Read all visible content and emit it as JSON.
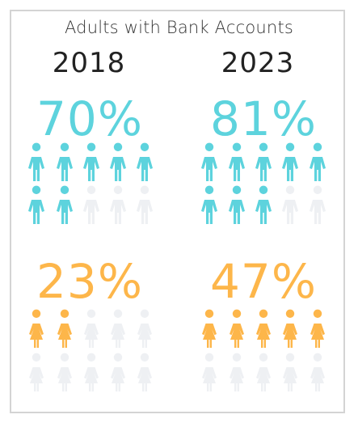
{
  "chart_data": {
    "type": "pictogram",
    "title": "Adults with Bank Accounts",
    "years": [
      "2018",
      "2023"
    ],
    "icons_per_group": 10,
    "series": [
      {
        "icon": "person-male-icon",
        "color": "#5dd3dd",
        "values": [
          70,
          81
        ],
        "labels": [
          "70%",
          "81%"
        ],
        "filled_icons": [
          7,
          8
        ]
      },
      {
        "icon": "person-female-icon",
        "color": "#fdb64a",
        "values": [
          23,
          47
        ],
        "labels": [
          "23%",
          "47%"
        ],
        "filled_icons": [
          2,
          5
        ]
      }
    ],
    "empty_color": "#eef0f3"
  }
}
